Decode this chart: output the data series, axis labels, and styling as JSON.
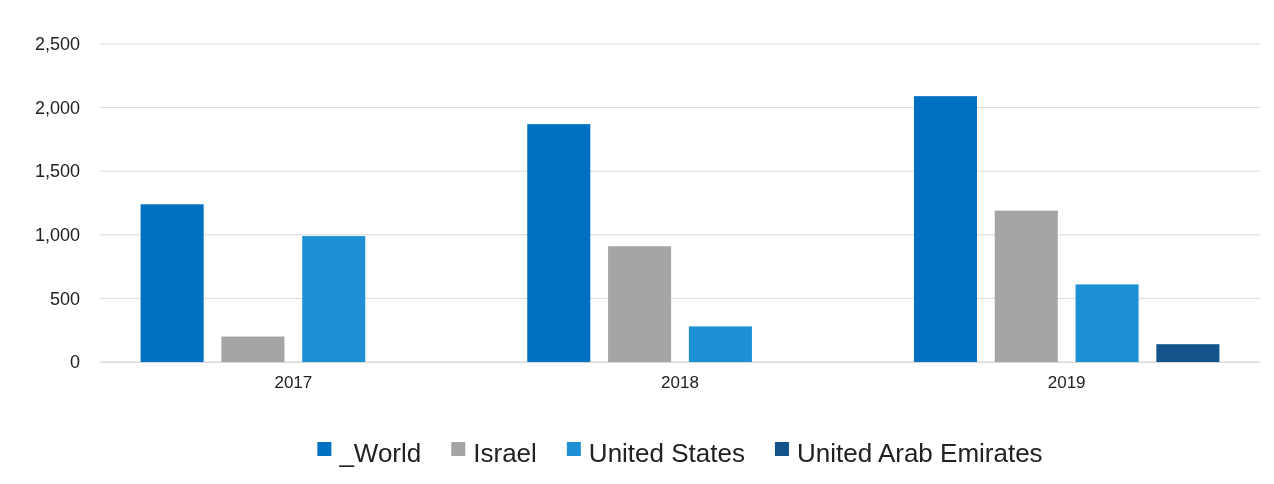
{
  "chart_data": {
    "type": "bar",
    "categories": [
      "2017",
      "2018",
      "2019"
    ],
    "series": [
      {
        "name": "_World",
        "color": "#0070c0",
        "values": [
          1240,
          1870,
          2090
        ]
      },
      {
        "name": "Israel",
        "color": "#a5a5a5",
        "values": [
          200,
          910,
          1190
        ]
      },
      {
        "name": "United States",
        "color": "#1e90d6",
        "values": [
          990,
          280,
          610
        ]
      },
      {
        "name": "United Arab Emirates",
        "color": "#11538a",
        "values": [
          null,
          null,
          140
        ]
      }
    ],
    "ylim": [
      0,
      2500
    ],
    "yticks": [
      0,
      500,
      {
        "value": 1000,
        "label": "1,000"
      },
      {
        "value": 1500,
        "label": "1,500"
      },
      {
        "value": 2000,
        "label": "2,000"
      },
      {
        "value": 2500,
        "label": "2,500"
      }
    ],
    "grid": "y",
    "legend": "bottom"
  }
}
